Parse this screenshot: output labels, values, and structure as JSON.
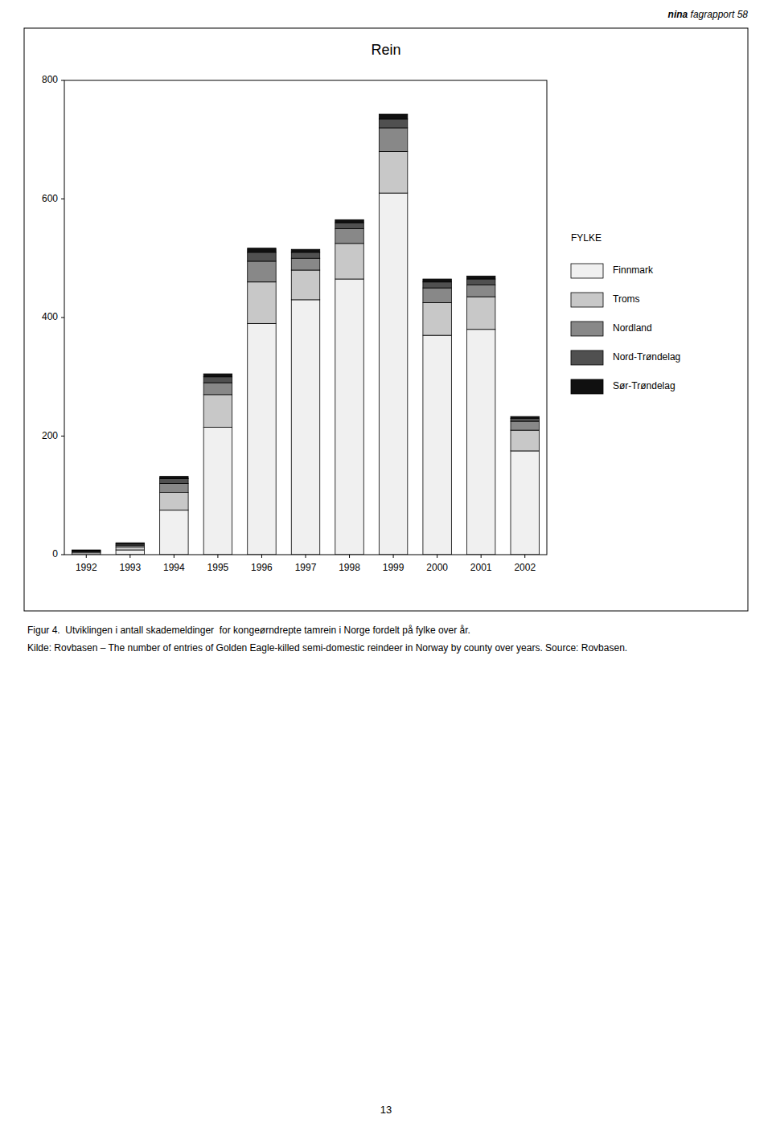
{
  "page": {
    "header_bold": "nina",
    "header_normal": " fagrapport 58",
    "page_number": "13"
  },
  "chart_data": {
    "type": "bar",
    "stacked": true,
    "title": "Rein",
    "legend_title": "FYLKE",
    "categories": [
      "1992",
      "1993",
      "1994",
      "1995",
      "1996",
      "1997",
      "1998",
      "1999",
      "2000",
      "2001",
      "2002"
    ],
    "series": [
      {
        "name": "Finnmark",
        "color": "#f0f0f0",
        "values": [
          3,
          8,
          75,
          215,
          390,
          430,
          465,
          610,
          370,
          380,
          175
        ]
      },
      {
        "name": "Troms",
        "color": "#c8c8c8",
        "values": [
          2,
          5,
          30,
          55,
          70,
          50,
          60,
          70,
          55,
          55,
          35
        ]
      },
      {
        "name": "Nordland",
        "color": "#888888",
        "values": [
          1,
          3,
          15,
          20,
          35,
          20,
          25,
          40,
          25,
          20,
          15
        ]
      },
      {
        "name": "Nord-Trøndelag",
        "color": "#505050",
        "values": [
          1,
          2,
          8,
          10,
          15,
          10,
          10,
          15,
          10,
          10,
          5
        ]
      },
      {
        "name": "Sør-Trøndelag",
        "color": "#101010",
        "values": [
          1,
          2,
          4,
          5,
          7,
          5,
          5,
          8,
          5,
          5,
          3
        ]
      }
    ],
    "ylim": [
      0,
      800
    ],
    "yticks": [
      0,
      200,
      400,
      600,
      800
    ],
    "grid": false,
    "caption": [
      "Figur 4.  Utviklingen i antall skademeldinger  for kongeørndrepte tamrein i Norge fordelt på fylke over år.",
      "Kilde: Rovbasen – The number of entries of Golden Eagle-killed semi-domestic reindeer in Norway by county over years. Source: Rovbasen."
    ]
  }
}
